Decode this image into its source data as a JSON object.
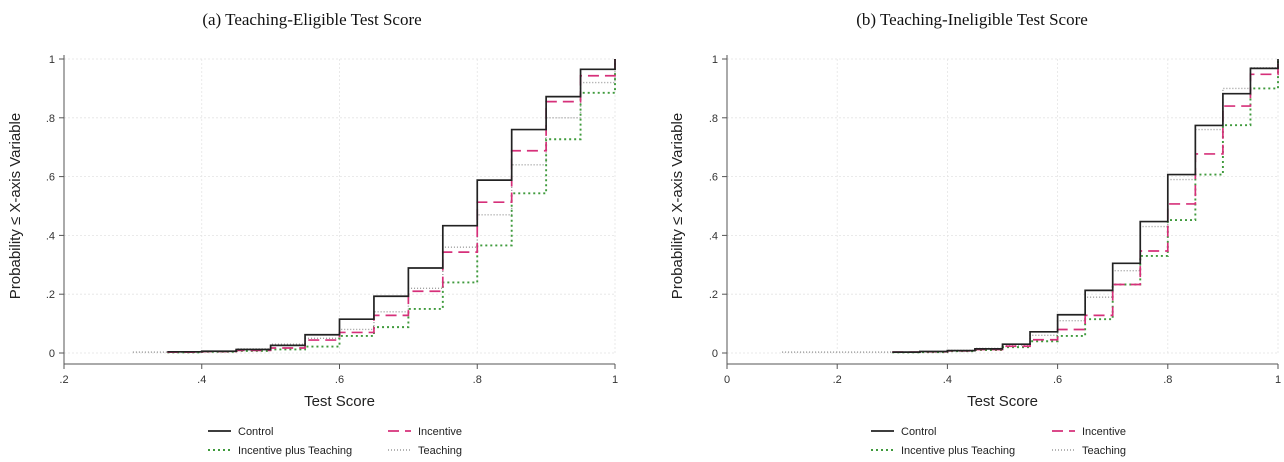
{
  "chart_data": [
    {
      "type": "line",
      "subtype": "step (empirical CDF)",
      "title": "(a) Teaching-Eligible Test Score",
      "xlabel": "Test Score",
      "ylabel": "Probability ≤ X-axis Variable",
      "xlim": [
        0.2,
        1.0
      ],
      "ylim": [
        0,
        1
      ],
      "xticks": [
        0.2,
        0.4,
        0.6,
        0.8,
        1.0
      ],
      "xtick_labels": [
        ".2",
        ".4",
        ".6",
        ".8",
        "1"
      ],
      "yticks": [
        0,
        0.2,
        0.4,
        0.6,
        0.8,
        1.0
      ],
      "ytick_labels": [
        "0",
        ".2",
        ".4",
        ".6",
        ".8",
        "1"
      ],
      "grid": true,
      "series": [
        {
          "name": "Control",
          "color": "#222222",
          "dash": "solid",
          "x": [
            0.35,
            0.4,
            0.45,
            0.5,
            0.55,
            0.6,
            0.65,
            0.7,
            0.75,
            0.8,
            0.85,
            0.9,
            0.95,
            1.0
          ],
          "y": [
            0.004,
            0.006,
            0.012,
            0.026,
            0.062,
            0.115,
            0.193,
            0.289,
            0.433,
            0.588,
            0.76,
            0.872,
            0.965,
            1.0
          ]
        },
        {
          "name": "Incentive",
          "color": "#d6307a",
          "dash": "long-dash",
          "x": [
            0.35,
            0.4,
            0.45,
            0.5,
            0.55,
            0.6,
            0.65,
            0.7,
            0.75,
            0.8,
            0.85,
            0.9,
            0.95,
            1.0
          ],
          "y": [
            0.003,
            0.005,
            0.009,
            0.017,
            0.044,
            0.07,
            0.128,
            0.21,
            0.343,
            0.513,
            0.688,
            0.855,
            0.943,
            1.0
          ]
        },
        {
          "name": "Incentive plus Teaching",
          "color": "#3f9a3c",
          "dash": "dot",
          "x": [
            0.35,
            0.4,
            0.45,
            0.5,
            0.55,
            0.6,
            0.65,
            0.7,
            0.75,
            0.8,
            0.85,
            0.9,
            0.95,
            1.0
          ],
          "y": [
            0.002,
            0.004,
            0.007,
            0.012,
            0.022,
            0.058,
            0.088,
            0.15,
            0.24,
            0.366,
            0.543,
            0.727,
            0.885,
            1.0
          ]
        },
        {
          "name": "Teaching",
          "color": "#9a9a9a",
          "dash": "fine-dot",
          "x": [
            0.3,
            0.4,
            0.45,
            0.5,
            0.55,
            0.6,
            0.65,
            0.7,
            0.75,
            0.8,
            0.85,
            0.9,
            0.95,
            1.0
          ],
          "y": [
            0.003,
            0.006,
            0.014,
            0.03,
            0.05,
            0.08,
            0.14,
            0.22,
            0.36,
            0.47,
            0.64,
            0.8,
            0.92,
            1.0
          ]
        }
      ]
    },
    {
      "type": "line",
      "subtype": "step (empirical CDF)",
      "title": "(b) Teaching-Ineligible Test Score",
      "xlabel": "Test Score",
      "ylabel": "Probability ≤ X-axis Variable",
      "xlim": [
        0,
        1.0
      ],
      "ylim": [
        0,
        1
      ],
      "xticks": [
        0,
        0.2,
        0.4,
        0.6,
        0.8,
        1.0
      ],
      "xtick_labels": [
        "0",
        ".2",
        ".4",
        ".6",
        ".8",
        "1"
      ],
      "yticks": [
        0,
        0.2,
        0.4,
        0.6,
        0.8,
        1.0
      ],
      "ytick_labels": [
        "0",
        ".2",
        ".4",
        ".6",
        ".8",
        "1"
      ],
      "grid": true,
      "series": [
        {
          "name": "Control",
          "color": "#222222",
          "dash": "solid",
          "x": [
            0.3,
            0.35,
            0.4,
            0.45,
            0.5,
            0.55,
            0.6,
            0.65,
            0.7,
            0.75,
            0.8,
            0.85,
            0.9,
            0.95,
            1.0
          ],
          "y": [
            0.003,
            0.005,
            0.008,
            0.014,
            0.03,
            0.072,
            0.13,
            0.213,
            0.305,
            0.447,
            0.607,
            0.774,
            0.882,
            0.968,
            1.0
          ]
        },
        {
          "name": "Incentive",
          "color": "#d6307a",
          "dash": "long-dash",
          "x": [
            0.3,
            0.35,
            0.4,
            0.45,
            0.5,
            0.55,
            0.6,
            0.65,
            0.7,
            0.75,
            0.8,
            0.85,
            0.9,
            0.95,
            1.0
          ],
          "y": [
            0.003,
            0.004,
            0.007,
            0.012,
            0.023,
            0.045,
            0.08,
            0.128,
            0.233,
            0.347,
            0.507,
            0.677,
            0.84,
            0.948,
            1.0
          ]
        },
        {
          "name": "Incentive plus Teaching",
          "color": "#3f9a3c",
          "dash": "dot",
          "x": [
            0.3,
            0.35,
            0.4,
            0.45,
            0.5,
            0.55,
            0.6,
            0.65,
            0.7,
            0.75,
            0.8,
            0.85,
            0.9,
            0.95,
            1.0
          ],
          "y": [
            0.002,
            0.003,
            0.006,
            0.01,
            0.02,
            0.04,
            0.058,
            0.115,
            0.233,
            0.33,
            0.452,
            0.607,
            0.775,
            0.9,
            1.0
          ]
        },
        {
          "name": "Teaching",
          "color": "#9a9a9a",
          "dash": "fine-dot",
          "x": [
            0.1,
            0.35,
            0.4,
            0.45,
            0.5,
            0.55,
            0.6,
            0.65,
            0.7,
            0.75,
            0.8,
            0.85,
            0.9,
            0.95,
            1.0
          ],
          "y": [
            0.003,
            0.005,
            0.009,
            0.016,
            0.027,
            0.06,
            0.11,
            0.19,
            0.28,
            0.43,
            0.59,
            0.76,
            0.9,
            0.97,
            1.0
          ]
        }
      ]
    }
  ],
  "legend": {
    "placement": "bottom",
    "items": [
      {
        "label": "Control",
        "color": "#222222",
        "dash": "solid"
      },
      {
        "label": "Incentive",
        "color": "#d6307a",
        "dash": "long-dash"
      },
      {
        "label": "Incentive plus Teaching",
        "color": "#3f9a3c",
        "dash": "dot"
      },
      {
        "label": "Teaching",
        "color": "#9a9a9a",
        "dash": "fine-dot"
      }
    ]
  }
}
